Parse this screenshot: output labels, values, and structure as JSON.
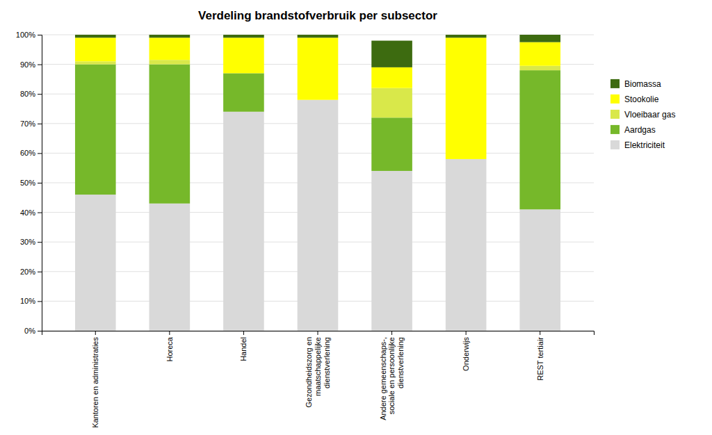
{
  "chart_data": {
    "type": "bar",
    "title": "Verdeling brandstofverbruik per subsector",
    "categories": [
      "Kantoren en administraties",
      "Horeca",
      "Handel",
      "Gezondheidszorg en\nmaatschappelijke\ndienstverlening",
      "Andere gemeenschaps-,\nsociale en persoonlijke\ndienstverlening",
      "Onderwijs",
      "REST tertiair"
    ],
    "series": [
      {
        "name": "Elektriciteit",
        "color": "#d9d9d9",
        "values": [
          0.46,
          0.43,
          0.74,
          0.78,
          0.54,
          0.58,
          0.41
        ]
      },
      {
        "name": "Aardgas",
        "color": "#76b82a",
        "values": [
          0.44,
          0.47,
          0.13,
          0.0,
          0.18,
          0.0,
          0.47
        ]
      },
      {
        "name": "Vloeibaar gas",
        "color": "#d9e84a",
        "values": [
          0.01,
          0.015,
          0.0,
          0.0,
          0.1,
          0.0,
          0.015
        ]
      },
      {
        "name": "Stookolie",
        "color": "#ffff00",
        "values": [
          0.08,
          0.075,
          0.12,
          0.21,
          0.07,
          0.41,
          0.08
        ]
      },
      {
        "name": "Biomassa",
        "color": "#3d6b10",
        "values": [
          0.01,
          0.01,
          0.01,
          0.01,
          0.09,
          0.01,
          0.025
        ]
      }
    ],
    "stacked": true,
    "ylim": [
      0,
      1.0
    ],
    "yticks": [
      {
        "value": 0.0,
        "label": "0%"
      },
      {
        "value": 0.1,
        "label": "10%"
      },
      {
        "value": 0.2,
        "label": "20%"
      },
      {
        "value": 0.3,
        "label": "30%"
      },
      {
        "value": 0.4,
        "label": "40%"
      },
      {
        "value": 0.5,
        "label": "50%"
      },
      {
        "value": 0.6,
        "label": "60%"
      },
      {
        "value": 0.7,
        "label": "70%"
      },
      {
        "value": 0.8,
        "label": "80%"
      },
      {
        "value": 0.9,
        "label": "90%"
      },
      {
        "value": 1.0,
        "label": "100%"
      }
    ],
    "grid": true,
    "legend": "right"
  }
}
